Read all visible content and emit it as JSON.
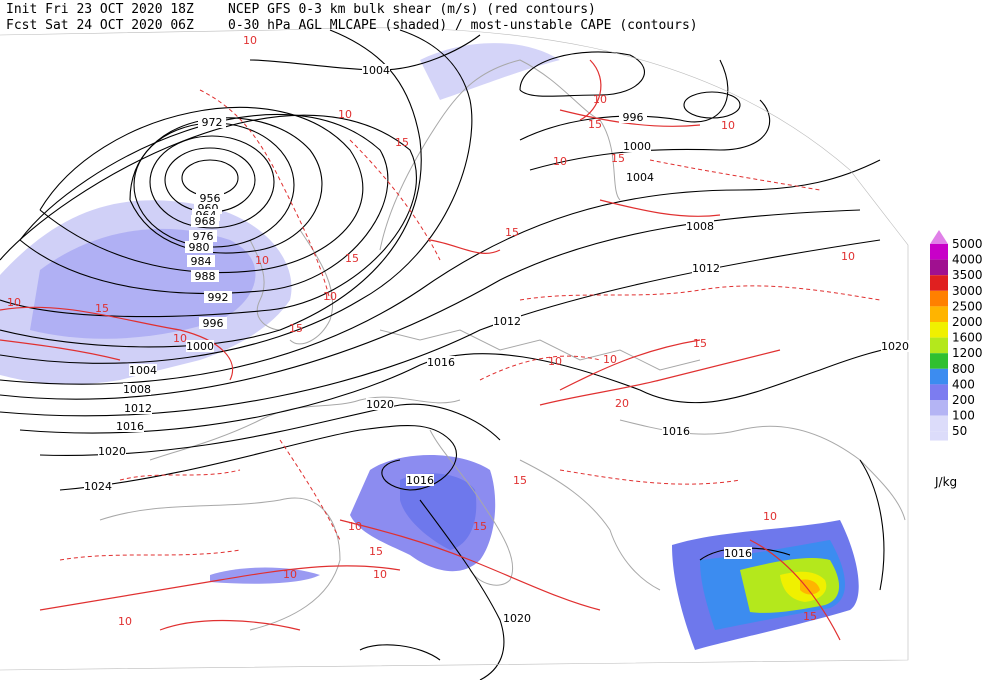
{
  "header": {
    "line1_left": "Init  Fri 23 OCT 2020 18Z",
    "line1_right": "NCEP GFS 0-3 km bulk shear (m/s) (red contours)",
    "line2_left": "Fcst Sat 24 OCT 2020 06Z",
    "line2_right": "0-30 hPa AGL MLCAPE (shaded) / most-unstable CAPE (contours)"
  },
  "isobar_labels": [
    "1004",
    "996",
    "1000",
    "1004",
    "1008",
    "1012",
    "972",
    "956",
    "960",
    "964",
    "968",
    "976",
    "980",
    "984",
    "988",
    "992",
    "996",
    "1000",
    "1004",
    "1008",
    "1012",
    "1016",
    "1020",
    "1024",
    "1012",
    "1016",
    "1020",
    "1016",
    "1016",
    "1020",
    "1016",
    "1020"
  ],
  "shear_labels": [
    "10",
    "10",
    "15",
    "10",
    "15",
    "10",
    "10",
    "15",
    "15",
    "10",
    "15",
    "10",
    "15",
    "20",
    "10",
    "15",
    "10",
    "15",
    "10",
    "10",
    "15",
    "15",
    "10",
    "10",
    "10",
    "15",
    "10",
    "15",
    "10",
    "10"
  ],
  "colorbar": {
    "levels": [
      {
        "label": "5000",
        "color": "#e080e8"
      },
      {
        "label": "4000",
        "color": "#c800c8"
      },
      {
        "label": "3500",
        "color": "#a01090"
      },
      {
        "label": "3000",
        "color": "#e02020"
      },
      {
        "label": "2500",
        "color": "#ff8000"
      },
      {
        "label": "2000",
        "color": "#ffb400"
      },
      {
        "label": "1600",
        "color": "#f0f000"
      },
      {
        "label": "1200",
        "color": "#b4e81c"
      },
      {
        "label": "800",
        "color": "#30c030"
      },
      {
        "label": "400",
        "color": "#3c8cf0"
      },
      {
        "label": "200",
        "color": "#7c7cf0"
      },
      {
        "label": "100",
        "color": "#b4b4f4"
      },
      {
        "label": "50",
        "color": "#dcdcfa"
      }
    ],
    "unit": "J/kg"
  }
}
